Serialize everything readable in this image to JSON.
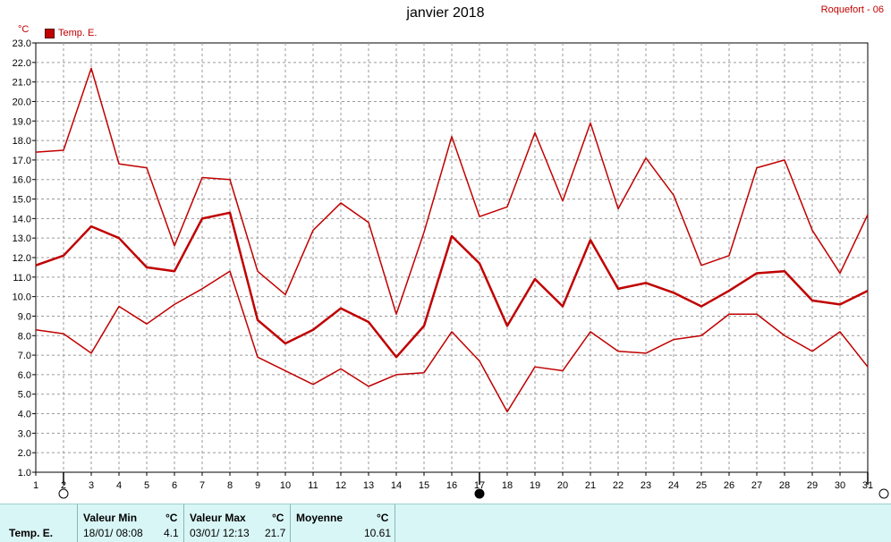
{
  "header": {
    "title": "janvier 2018",
    "station": "Roquefort - 06",
    "unit": "°C",
    "legend_label": "Temp. E."
  },
  "colors": {
    "series": "#c00000",
    "grid": "#9a9a9a",
    "footer_bg": "#d9f6f6"
  },
  "moon_phases": [
    {
      "day": 2,
      "phase": "full-moon-icon"
    },
    {
      "day": 17,
      "phase": "new-moon-icon"
    },
    {
      "day": 31,
      "phase": "full-moon-icon"
    }
  ],
  "chart_data": {
    "type": "line",
    "x": [
      1,
      2,
      3,
      4,
      5,
      6,
      7,
      8,
      9,
      10,
      11,
      12,
      13,
      14,
      15,
      16,
      17,
      18,
      19,
      20,
      21,
      22,
      23,
      24,
      25,
      26,
      27,
      28,
      29,
      30,
      31
    ],
    "series": [
      {
        "values": [
          17.4,
          17.5,
          21.7,
          16.8,
          16.6,
          12.6,
          16.1,
          16.0,
          11.3,
          10.1,
          13.4,
          14.8,
          13.8,
          9.1,
          13.3,
          18.2,
          14.1,
          14.6,
          18.4,
          14.9,
          18.9,
          14.5,
          17.1,
          15.2,
          11.6,
          12.1,
          16.6,
          17.0,
          13.4,
          11.2,
          14.2
        ],
        "width": 1.5
      },
      {
        "values": [
          11.6,
          12.1,
          13.6,
          13.0,
          11.5,
          11.3,
          14.0,
          14.3,
          8.8,
          7.6,
          8.3,
          9.4,
          8.7,
          6.9,
          8.5,
          13.1,
          11.7,
          8.5,
          10.9,
          9.5,
          12.9,
          10.4,
          10.7,
          10.2,
          9.5,
          10.3,
          11.2,
          11.3,
          9.8,
          9.6,
          10.3
        ],
        "width": 2.5
      },
      {
        "values": [
          8.3,
          8.1,
          7.1,
          9.5,
          8.6,
          9.6,
          10.4,
          11.3,
          6.9,
          6.2,
          5.5,
          6.3,
          5.4,
          6.0,
          6.1,
          8.2,
          6.7,
          4.1,
          6.4,
          6.2,
          8.2,
          7.2,
          7.1,
          7.8,
          8.0,
          9.1,
          9.1,
          8.0,
          7.2,
          8.2,
          6.4
        ],
        "width": 1.5
      }
    ],
    "yticks": [
      "1.0",
      "2.0",
      "3.0",
      "4.0",
      "5.0",
      "6.0",
      "7.0",
      "8.0",
      "9.0",
      "10.0",
      "11.0",
      "12.0",
      "13.0",
      "14.0",
      "15.0",
      "16.0",
      "17.0",
      "18.0",
      "19.0",
      "20.0",
      "21.0",
      "22.0",
      "23.0"
    ],
    "xticks": [
      "1",
      "2",
      "3",
      "4",
      "5",
      "6",
      "7",
      "8",
      "9",
      "10",
      "11",
      "12",
      "13",
      "14",
      "15",
      "16",
      "17",
      "18",
      "19",
      "20",
      "21",
      "22",
      "23",
      "24",
      "25",
      "26",
      "27",
      "28",
      "29",
      "30",
      "31"
    ],
    "ylim": [
      1.0,
      23.0
    ],
    "xlim": [
      1,
      31
    ],
    "grid": true
  },
  "footer": {
    "row_label": "Temp. E.",
    "min": {
      "label": "Valeur Min",
      "unit": "°C",
      "when": "18/01/  08:08",
      "value": "4.1"
    },
    "max": {
      "label": "Valeur Max",
      "unit": "°C",
      "when": "03/01/  12:13",
      "value": "21.7"
    },
    "avg": {
      "label": "Moyenne",
      "unit": "°C",
      "value": "10.61"
    }
  }
}
